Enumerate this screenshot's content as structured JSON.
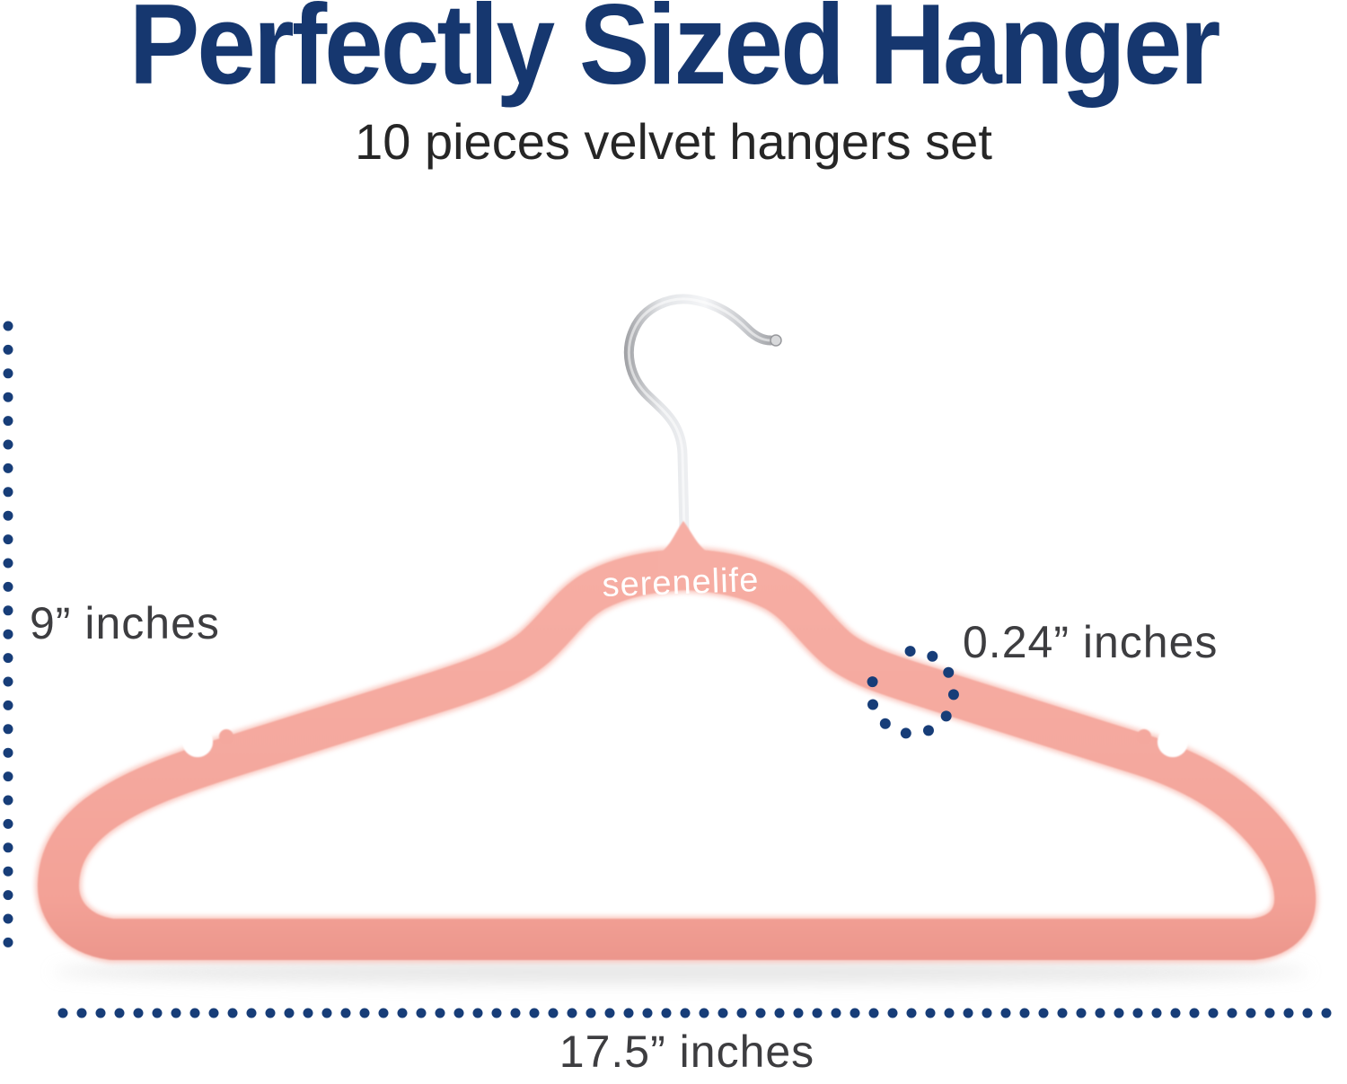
{
  "header": {
    "title": "Perfectly Sized Hanger",
    "subtitle": "10 pieces velvet hangers set"
  },
  "dimensions": {
    "height_label": "9” inches",
    "thickness_label": "0.24” inches",
    "width_label": "17.5” inches"
  },
  "product": {
    "brand_logo": "serenelife"
  },
  "colors": {
    "title_navy": "#16376f",
    "dot_navy": "#173d78",
    "label_gray": "#3d3d40",
    "hanger_pink": "#f4a89e",
    "hanger_pink_light": "#f9c3ba",
    "hook_silver": "#d8d9db"
  }
}
